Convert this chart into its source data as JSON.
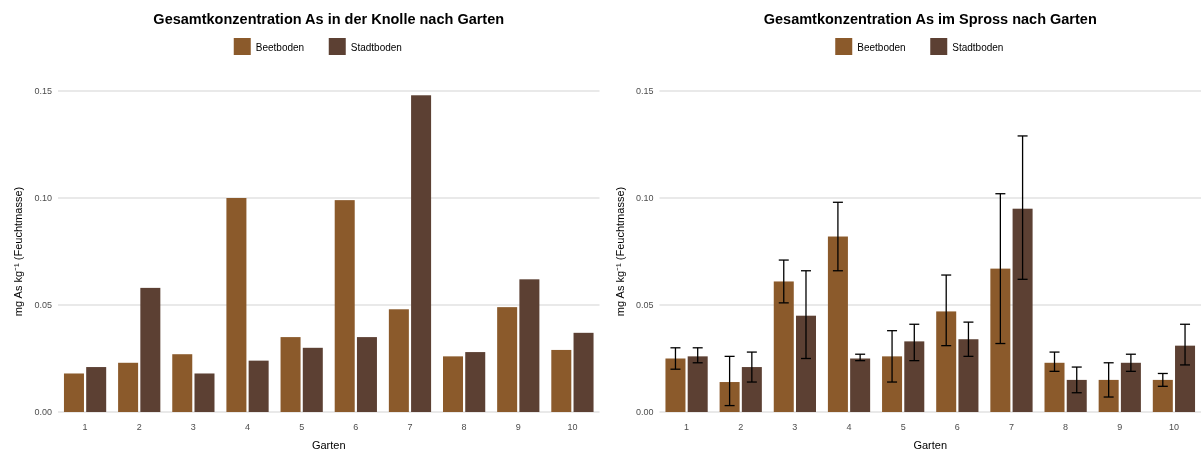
{
  "chart_data": [
    {
      "type": "bar",
      "title": "Gesamtkonzentration As in der Knolle nach Garten",
      "xlabel": "Garten",
      "ylabel": "mg As kg⁻¹ (Feuchtmasse)",
      "categories": [
        "1",
        "2",
        "3",
        "4",
        "5",
        "6",
        "7",
        "8",
        "9",
        "10"
      ],
      "series": [
        {
          "name": "Beetboden",
          "color": "#8b5a2b",
          "values": [
            0.018,
            0.023,
            0.027,
            0.1,
            0.035,
            0.099,
            0.048,
            0.026,
            0.049,
            0.029
          ]
        },
        {
          "name": "Stadtboden",
          "color": "#5c4033",
          "values": [
            0.021,
            0.058,
            0.018,
            0.024,
            0.03,
            0.035,
            0.148,
            0.028,
            0.062,
            0.037
          ]
        }
      ],
      "ylim": [
        0,
        0.15
      ],
      "yticks": [
        {
          "value": 0,
          "label": "0.00"
        },
        {
          "value": 0.05,
          "label": "0.05"
        },
        {
          "value": 0.1,
          "label": "0.10"
        },
        {
          "value": 0.15,
          "label": "0.15"
        }
      ],
      "grid": "y",
      "legend": "top"
    },
    {
      "type": "bar",
      "title": "Gesamtkonzentration As im Spross nach Garten",
      "xlabel": "Garten",
      "ylabel": "mg As kg⁻¹ (Feuchtmasse)",
      "categories": [
        "1",
        "2",
        "3",
        "4",
        "5",
        "6",
        "7",
        "8",
        "9",
        "10"
      ],
      "series": [
        {
          "name": "Beetboden",
          "color": "#8b5a2b",
          "values": [
            0.025,
            0.014,
            0.061,
            0.082,
            0.026,
            0.047,
            0.067,
            0.023,
            0.015,
            0.015
          ],
          "errors": [
            [
              0.02,
              0.03
            ],
            [
              0.003,
              0.026
            ],
            [
              0.051,
              0.071
            ],
            [
              0.066,
              0.098
            ],
            [
              0.014,
              0.038
            ],
            [
              0.031,
              0.064
            ],
            [
              0.032,
              0.102
            ],
            [
              0.019,
              0.028
            ],
            [
              0.007,
              0.023
            ],
            [
              0.012,
              0.018
            ]
          ]
        },
        {
          "name": "Stadtboden",
          "color": "#5c4033",
          "values": [
            0.026,
            0.021,
            0.045,
            0.025,
            0.033,
            0.034,
            0.095,
            0.015,
            0.023,
            0.031
          ],
          "errors": [
            [
              0.023,
              0.03
            ],
            [
              0.014,
              0.028
            ],
            [
              0.025,
              0.066
            ],
            [
              0.024,
              0.027
            ],
            [
              0.024,
              0.041
            ],
            [
              0.026,
              0.042
            ],
            [
              0.062,
              0.129
            ],
            [
              0.009,
              0.021
            ],
            [
              0.019,
              0.027
            ],
            [
              0.022,
              0.041
            ]
          ]
        }
      ],
      "ylim": [
        0,
        0.15
      ],
      "yticks": [
        {
          "value": 0,
          "label": "0.00"
        },
        {
          "value": 0.05,
          "label": "0.05"
        },
        {
          "value": 0.1,
          "label": "0.10"
        },
        {
          "value": 0.15,
          "label": "0.15"
        }
      ],
      "grid": "y",
      "legend": "top"
    }
  ]
}
